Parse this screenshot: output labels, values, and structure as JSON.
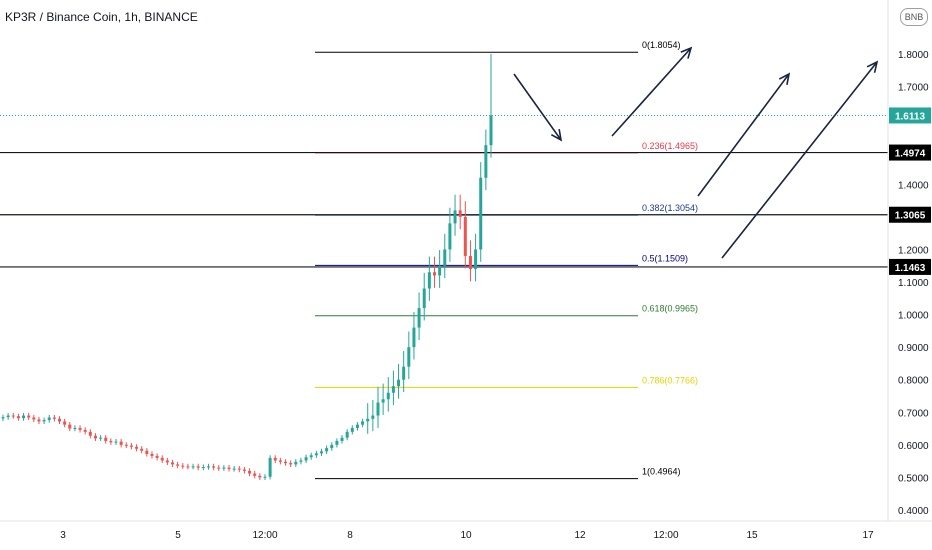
{
  "header": {
    "symbol_title": "KP3R / Binance Coin, 1h, BINANCE"
  },
  "toolbar": {
    "currency_badge": "BNB"
  },
  "colors": {
    "up": "#26a69a",
    "down": "#ef5350",
    "fib_0": "#000000",
    "fib_0236": "#f23645",
    "fib_0382": "#1e3a8a",
    "fib_05": "#000080",
    "fib_0618": "#2e7d32",
    "fib_0786": "#e6d200",
    "fib_1": "#000000",
    "last_price_line": "#26a69a",
    "arrow": "#1a2340"
  },
  "chart_data": {
    "type": "candlestick",
    "title": "KP3R / Binance Coin, 1h, BINANCE",
    "x_tick_labels": [
      "3",
      "5",
      "12:00",
      "8",
      "10",
      "12",
      "12:00",
      "15",
      "17"
    ],
    "y_tick_labels": [
      "1.8000",
      "1.7000",
      "1.6000",
      "1.5000",
      "1.4000",
      "1.3000",
      "1.2000",
      "1.1000",
      "1.0000",
      "0.9000",
      "0.8000",
      "0.7000",
      "0.6000",
      "0.5000",
      "0.4000"
    ],
    "y_ticks": [
      1.8,
      1.7,
      1.6,
      1.5,
      1.4,
      1.3,
      1.2,
      1.1,
      1.0,
      0.9,
      0.8,
      0.7,
      0.6,
      0.5,
      0.4
    ],
    "ylim": [
      0.38,
      1.92
    ],
    "fibonacci": [
      {
        "level": 0,
        "price": 1.8054,
        "label": "0(1.8054)"
      },
      {
        "level": 0.236,
        "price": 1.4965,
        "label": "0.236(1.4965)"
      },
      {
        "level": 0.382,
        "price": 1.3054,
        "label": "0.382(1.3054)"
      },
      {
        "level": 0.5,
        "price": 1.1509,
        "label": "0.5(1.1509)"
      },
      {
        "level": 0.618,
        "price": 0.9965,
        "label": "0.618(0.9965)"
      },
      {
        "level": 0.786,
        "price": 0.7766,
        "label": "0.786(0.7766)"
      },
      {
        "level": 1,
        "price": 0.4964,
        "label": "1(0.4964)"
      }
    ],
    "horizontal_lines": [
      {
        "price": 1.4974,
        "label": "1.4974"
      },
      {
        "price": 1.3065,
        "label": "1.3065"
      },
      {
        "price": 1.1463,
        "label": "1.1463"
      }
    ],
    "last_price": {
      "price": 1.6113,
      "label": "1.6113"
    },
    "candles_close_path": [
      0.685,
      0.69,
      0.688,
      0.682,
      0.69,
      0.684,
      0.678,
      0.672,
      0.676,
      0.684,
      0.68,
      0.672,
      0.662,
      0.65,
      0.652,
      0.646,
      0.64,
      0.628,
      0.62,
      0.622,
      0.612,
      0.608,
      0.61,
      0.6,
      0.598,
      0.594,
      0.588,
      0.582,
      0.572,
      0.566,
      0.56,
      0.552,
      0.546,
      0.54,
      0.536,
      0.534,
      0.533,
      0.534,
      0.53,
      0.532,
      0.534,
      0.53,
      0.528,
      0.53,
      0.526,
      0.527,
      0.524,
      0.52,
      0.512,
      0.505,
      0.5,
      0.502,
      0.56,
      0.552,
      0.548,
      0.544,
      0.54,
      0.548,
      0.552,
      0.562,
      0.568,
      0.574,
      0.58,
      0.59,
      0.6,
      0.612,
      0.622,
      0.64,
      0.652,
      0.662,
      0.672,
      0.68,
      0.69,
      0.73,
      0.74,
      0.76,
      0.78,
      0.8,
      0.84,
      0.9,
      0.96,
      1.02,
      1.08,
      1.13,
      1.12,
      1.15,
      1.2,
      1.28,
      1.32,
      1.3,
      1.18,
      1.14,
      1.2,
      1.42,
      1.52,
      1.6113
    ],
    "annotations": [
      {
        "type": "arrow",
        "direction": "down-right"
      },
      {
        "type": "arrow",
        "direction": "up-right"
      },
      {
        "type": "arrow",
        "direction": "up-right"
      },
      {
        "type": "arrow",
        "direction": "up-right"
      }
    ]
  }
}
